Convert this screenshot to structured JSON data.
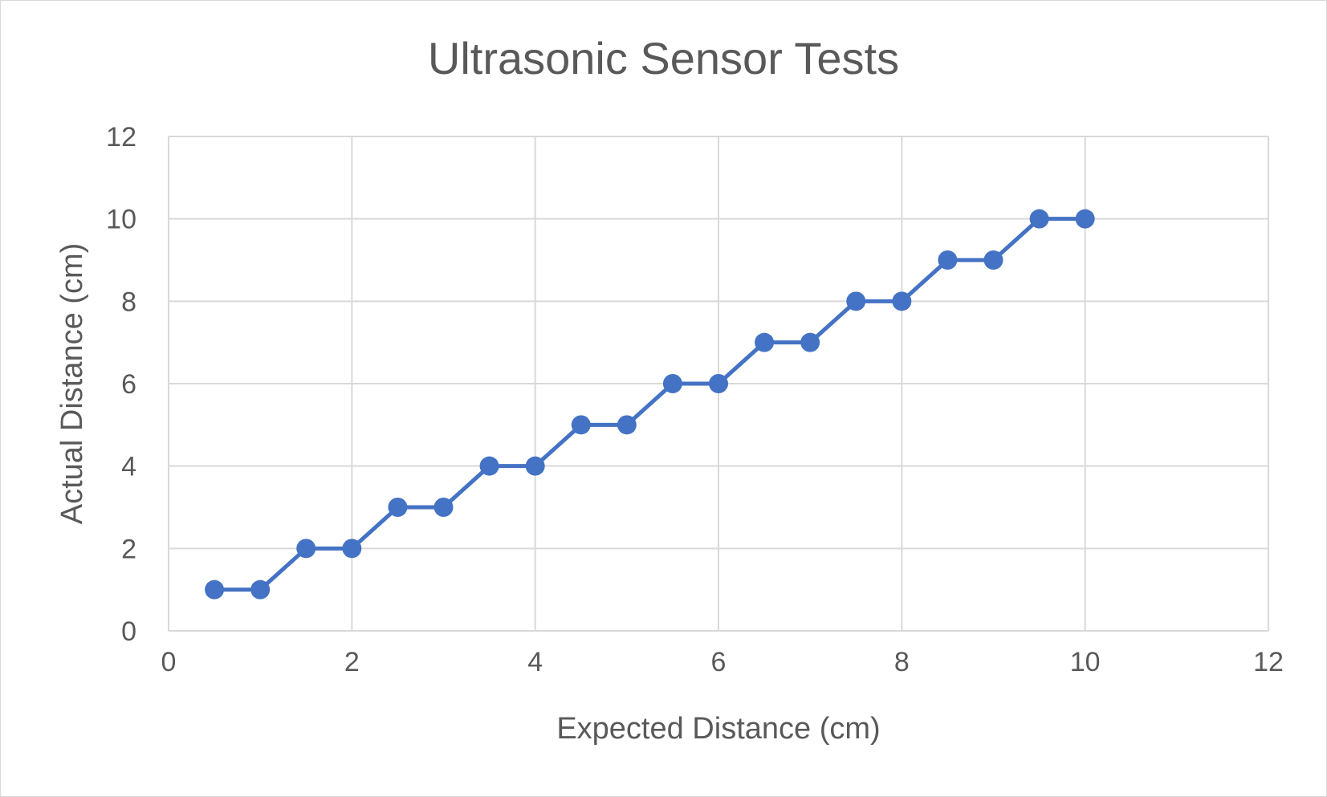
{
  "chart_data": {
    "type": "scatter",
    "title": "Ultrasonic Sensor Tests",
    "xlabel": "Expected Distance (cm)",
    "ylabel": "Actual Distance (cm)",
    "xlim": [
      0,
      12
    ],
    "ylim": [
      0,
      12
    ],
    "x_ticks": [
      0,
      2,
      4,
      6,
      8,
      10,
      12
    ],
    "y_ticks": [
      0,
      2,
      4,
      6,
      8,
      10,
      12
    ],
    "grid": true,
    "lines_connecting_markers": true,
    "series": [
      {
        "color": "#4472c4",
        "x": [
          0.5,
          1,
          1.5,
          2,
          2.5,
          3,
          3.5,
          4,
          4.5,
          5,
          5.5,
          6,
          6.5,
          7,
          7.5,
          8,
          8.5,
          9,
          9.5,
          10
        ],
        "y": [
          1,
          1,
          2,
          2,
          3,
          3,
          4,
          4,
          5,
          5,
          6,
          6,
          7,
          7,
          8,
          8,
          9,
          9,
          10,
          10
        ]
      }
    ]
  }
}
